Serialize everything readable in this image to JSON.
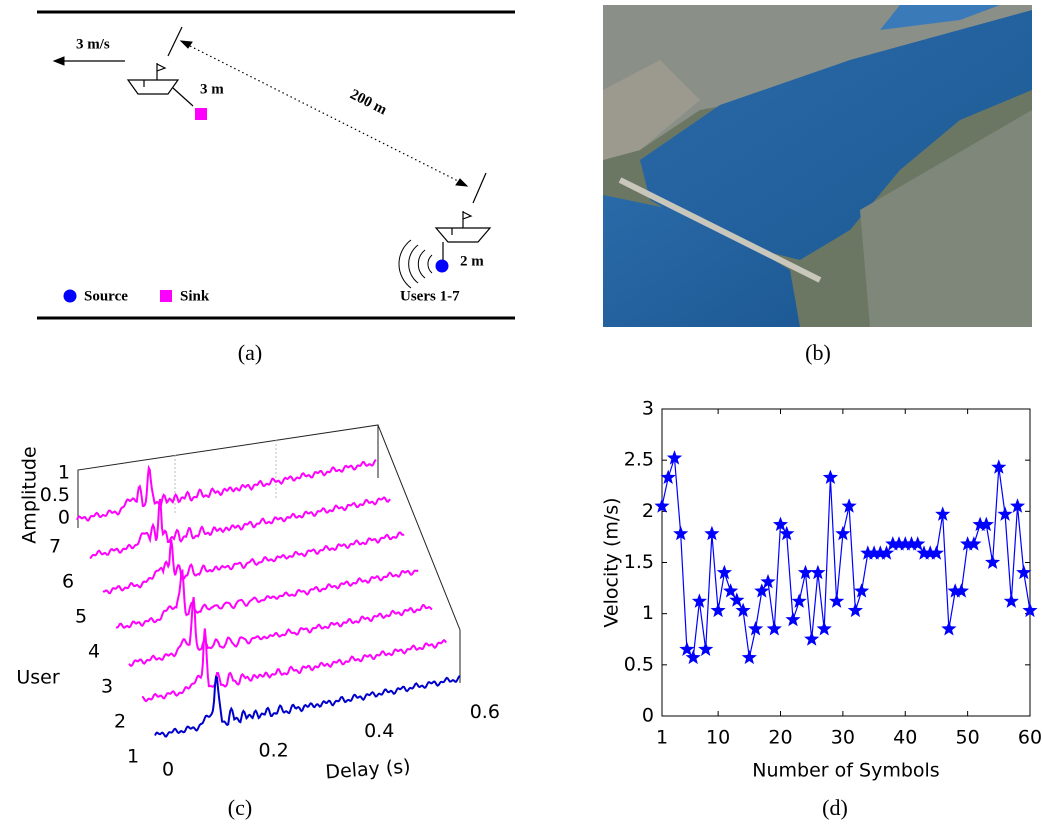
{
  "panel_a": {
    "caption": "(a)",
    "speed": "3 m/s",
    "sink_depth": "3 m",
    "distance": "200 m",
    "source_depth": "2 m",
    "legend": {
      "source": "Source",
      "sink": "Sink"
    },
    "users": "Users 1-7"
  },
  "panel_b": {
    "caption": "(b)"
  },
  "panel_c": {
    "caption": "(c)",
    "amplitude_label": "Amplitude",
    "user_label": "User",
    "delay_label": "Delay (s)",
    "delay_ticks": [
      0,
      0.2,
      0.4,
      0.6
    ],
    "user_ticks": [
      1,
      2,
      3,
      4,
      5,
      6,
      7
    ],
    "amplitude_ticks": [
      0,
      0.5,
      1
    ]
  },
  "chart_data": {
    "type": "line",
    "caption": "(d)",
    "xlabel": "Number of Symbols",
    "ylabel": "Velocity (m/s)",
    "x": [
      1,
      2,
      3,
      4,
      5,
      6,
      7,
      8,
      9,
      10,
      11,
      12,
      13,
      14,
      15,
      16,
      17,
      18,
      19,
      20,
      21,
      22,
      23,
      24,
      25,
      26,
      27,
      28,
      29,
      30,
      31,
      32,
      33,
      34,
      35,
      36,
      37,
      38,
      39,
      40,
      41,
      42,
      43,
      44,
      45,
      46,
      47,
      48,
      49,
      50,
      51,
      52,
      53,
      54,
      55,
      56,
      57,
      58,
      59,
      60
    ],
    "series": [
      {
        "color": "#0000ff",
        "marker": "star",
        "values": [
          2.05,
          2.33,
          2.52,
          1.78,
          0.65,
          0.57,
          1.12,
          0.65,
          1.78,
          1.03,
          1.4,
          1.22,
          1.13,
          1.03,
          0.57,
          0.85,
          1.22,
          1.31,
          0.85,
          1.87,
          1.78,
          0.94,
          1.12,
          1.4,
          0.75,
          1.4,
          0.85,
          2.33,
          1.12,
          1.78,
          2.05,
          1.03,
          1.22,
          1.59,
          1.59,
          1.59,
          1.59,
          1.68,
          1.68,
          1.68,
          1.68,
          1.68,
          1.59,
          1.59,
          1.59,
          1.97,
          0.85,
          1.22,
          1.22,
          1.68,
          1.68,
          1.87,
          1.87,
          1.5,
          2.43,
          1.97,
          1.12,
          2.05,
          1.4,
          1.03
        ]
      }
    ],
    "xlim": [
      1,
      60
    ],
    "ylim": [
      0,
      3
    ],
    "xticks": [
      1,
      10,
      20,
      30,
      40,
      50,
      60
    ],
    "yticks": [
      0,
      0.5,
      1,
      1.5,
      2,
      2.5,
      3
    ]
  }
}
